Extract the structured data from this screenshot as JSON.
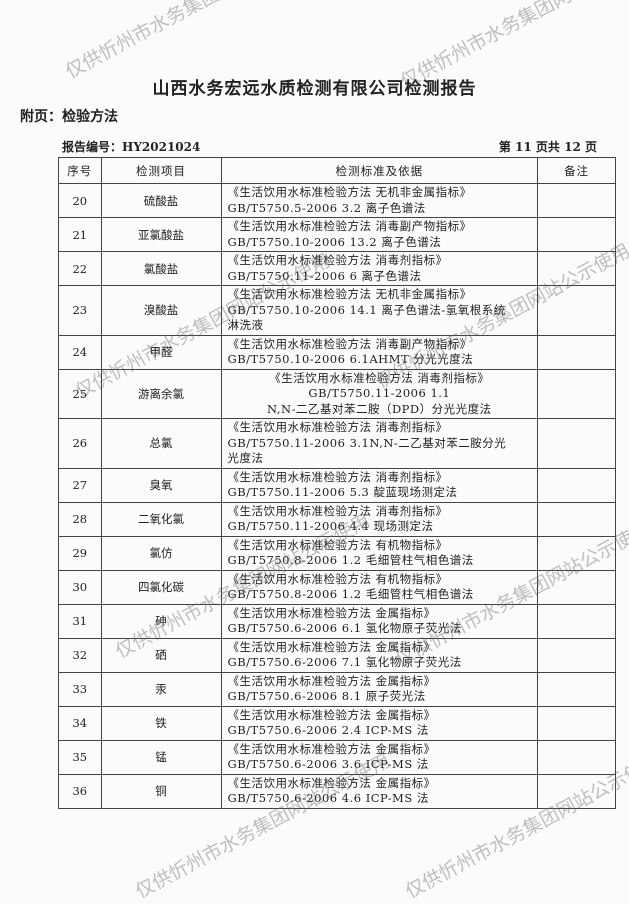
{
  "title": "山西水务宏远水质检测有限公司检测报告",
  "subtitle": "附页：检验方法",
  "report_no": "报告编号：HY2021024",
  "page_no": "第 11 页共 12 页",
  "headers": [
    "序号",
    "检测项目",
    "检测标准及依据",
    "备注"
  ],
  "rows": [
    {
      "seq": "20",
      "item": "硫酸盐",
      "std": [
        "《生活饮用水标准检验方法 无机非金属指标》",
        "GB/T5750.5-2006  3.2 离子色谱法"
      ],
      "note": ""
    },
    {
      "seq": "21",
      "item": "亚氯酸盐",
      "std": [
        "《生活饮用水标准检验方法 消毒副产物指标》",
        "GB/T5750.10-2006  13.2 离子色谱法"
      ],
      "note": ""
    },
    {
      "seq": "22",
      "item": "氯酸盐",
      "std": [
        "《生活饮用水标准检验方法  消毒剂指标》",
        "GB/T5750.11-2006  6 离子色谱法"
      ],
      "note": ""
    },
    {
      "seq": "23",
      "item": "溴酸盐",
      "std": [
        "《生活饮用水标准检验方法 无机非金属指标》",
        "GB/T5750.10-2006  14.1 离子色谱法-氢氧根系统",
        "淋洗液"
      ],
      "note": ""
    },
    {
      "seq": "24",
      "item": "甲醛",
      "std": [
        "《生活饮用水标准检验方法 消毒副产物指标》",
        "GB/T5750.10-2006  6.1AHMT 分光光度法"
      ],
      "note": ""
    },
    {
      "seq": "25",
      "item": "游离余氯",
      "std": [
        "《生活饮用水标准检验方法 消毒剂指标》",
        "GB/T5750.11-2006 1.1",
        "N,N-二乙基对苯二胺（DPD）分光光度法"
      ],
      "note": ""
    },
    {
      "seq": "26",
      "item": "总氯",
      "std": [
        "《生活饮用水标准检验方法  消毒剂指标》",
        "GB/T5750.11-2006  3.1N,N-二乙基对苯二胺分光",
        "光度法"
      ],
      "note": ""
    },
    {
      "seq": "27",
      "item": "臭氧",
      "std": [
        "《生活饮用水标准检验方法  消毒剂指标》",
        "GB/T5750.11-2006  5.3 靛蓝现场测定法"
      ],
      "note": ""
    },
    {
      "seq": "28",
      "item": "二氧化氯",
      "std": [
        "《生活饮用水标准检验方法  消毒剂指标》",
        "GB/T5750.11-2006  4.4 现场测定法"
      ],
      "note": ""
    },
    {
      "seq": "29",
      "item": "氯仿",
      "std": [
        "《生活饮用水标准检验方法  有机物指标》",
        "GB/T5750.8-2006  1.2 毛细管柱气相色谱法"
      ],
      "note": ""
    },
    {
      "seq": "30",
      "item": "四氯化碳",
      "std": [
        "《生活饮用水标准检验方法  有机物指标》",
        "GB/T5750.8-2006  1.2 毛细管柱气相色谱法"
      ],
      "note": ""
    },
    {
      "seq": "31",
      "item": "砷",
      "std": [
        "《生活饮用水标准检验方法  金属指标》",
        "GB/T5750.6-2006  6.1 氢化物原子荧光法"
      ],
      "note": ""
    },
    {
      "seq": "32",
      "item": "硒",
      "std": [
        "《生活饮用水标准检验方法  金属指标》",
        "GB/T5750.6-2006  7.1 氢化物原子荧光法"
      ],
      "note": ""
    },
    {
      "seq": "33",
      "item": "汞",
      "std": [
        "《生活饮用水标准检验方法  金属指标》",
        "GB/T5750.6-2006  8.1 原子荧光法"
      ],
      "note": ""
    },
    {
      "seq": "34",
      "item": "铁",
      "std": [
        "《生活饮用水标准检验方法  金属指标》",
        "GB/T5750.6-2006  2.4 ICP-MS 法"
      ],
      "note": ""
    },
    {
      "seq": "35",
      "item": "锰",
      "std": [
        "《生活饮用水标准检验方法  金属指标》",
        "GB/T5750.6-2006  3.6 ICP-MS 法"
      ],
      "note": ""
    },
    {
      "seq": "36",
      "item": "铜",
      "std": [
        "《生活饮用水标准检验方法  金属指标》",
        "GB/T5750.6-2006  4.6 ICP-MS 法"
      ],
      "note": ""
    }
  ],
  "watermark": "仅供忻州市水务集团网站公示使用"
}
